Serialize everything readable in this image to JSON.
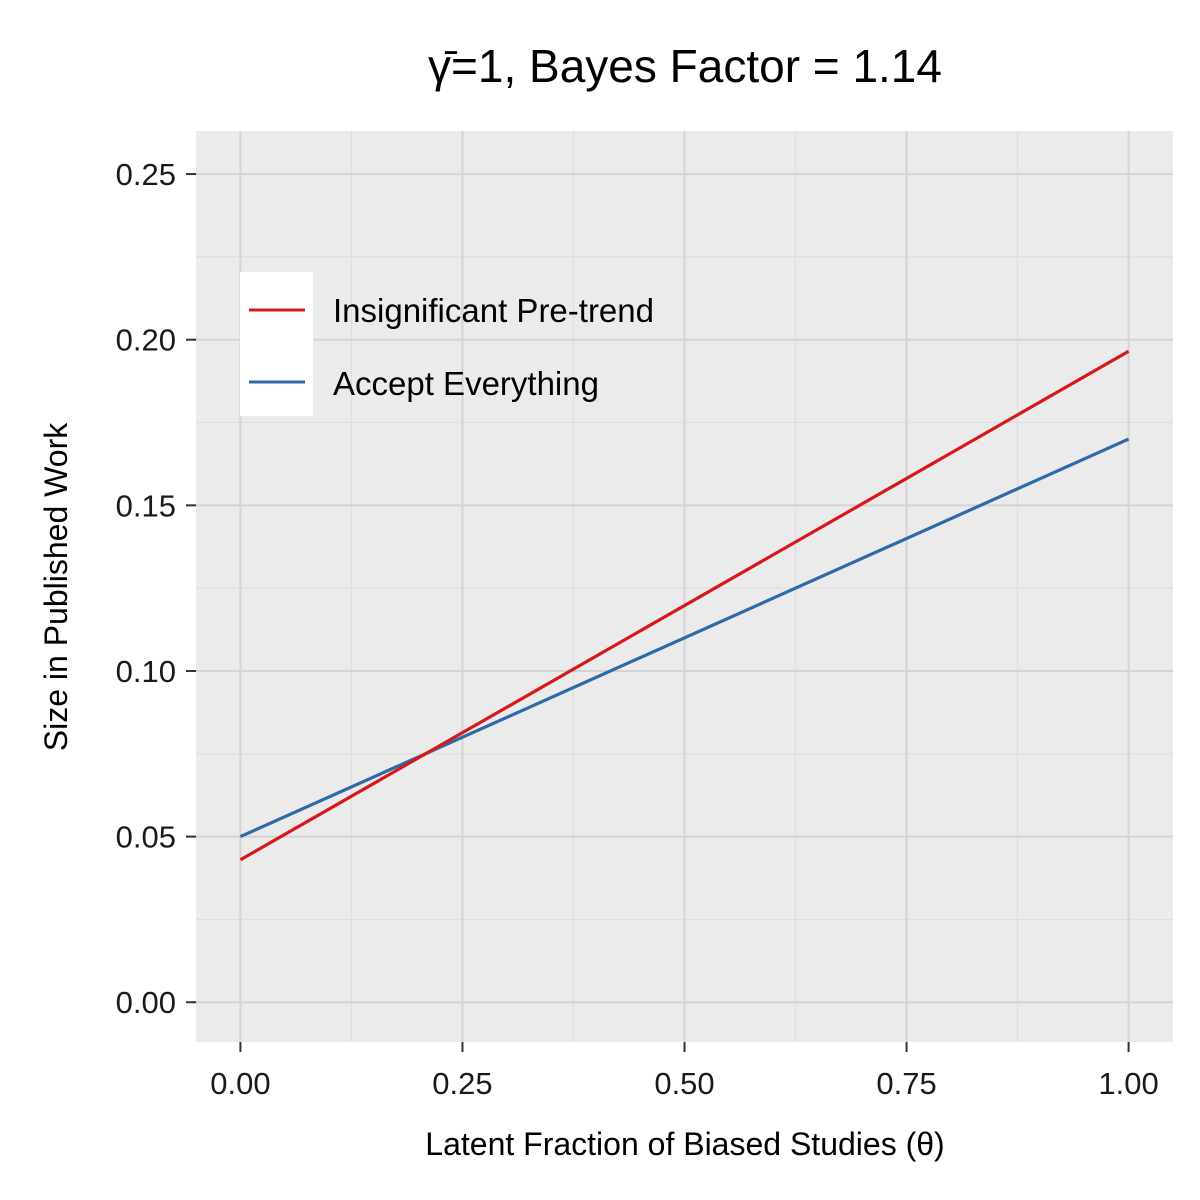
{
  "chart_data": {
    "type": "line",
    "title": "γ̄=1, Bayes Factor = 1.14",
    "xlabel": "Latent Fraction of Biased Studies (θ)",
    "ylabel": "Size in Published Work",
    "xlim": [
      -0.05,
      1.05
    ],
    "ylim": [
      -0.012,
      0.263
    ],
    "x_ticks": [
      0.0,
      0.25,
      0.5,
      0.75,
      1.0
    ],
    "x_tick_labels": [
      "0.00",
      "0.25",
      "0.50",
      "0.75",
      "1.00"
    ],
    "y_ticks": [
      0.0,
      0.05,
      0.1,
      0.15,
      0.2,
      0.25
    ],
    "y_tick_labels": [
      "0.00",
      "0.05",
      "0.10",
      "0.15",
      "0.20",
      "0.25"
    ],
    "grid": true,
    "legend_position": "top-left (inside)",
    "series": [
      {
        "name": "Insignificant Pre-trend",
        "color": "#d7191c",
        "x": [
          0,
          1
        ],
        "y": [
          0.043,
          0.1965
        ]
      },
      {
        "name": "Accept Everything",
        "color": "#2c6aa9",
        "x": [
          0,
          1
        ],
        "y": [
          0.05,
          0.17
        ]
      }
    ]
  },
  "colors": {
    "panel_background": "#ebebeb",
    "grid_major": "#d4d4d4",
    "grid_minor": "#dedede",
    "legend_background": "#ffffff",
    "tick_mark": "#333333"
  }
}
